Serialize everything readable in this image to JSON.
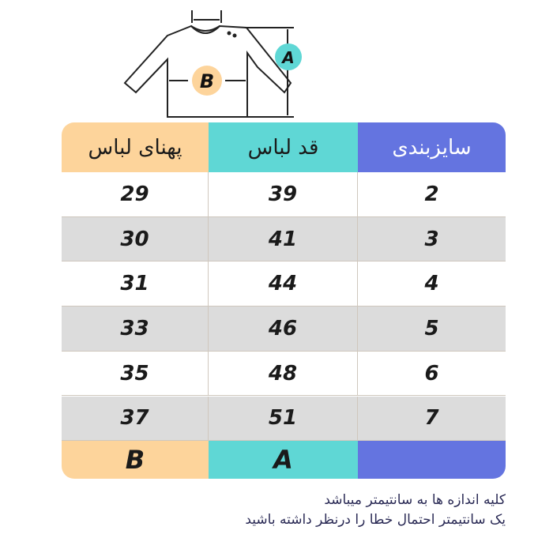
{
  "diagram": {
    "label_a": "A",
    "label_b": "B"
  },
  "colors": {
    "width_col": "#fdd49b",
    "length_col": "#5fd7d5",
    "size_col": "#6474e0",
    "row_alt": "#dcdcdc"
  },
  "table": {
    "headers": {
      "width": "پهنای لباس",
      "length": "قد لباس",
      "size": "سایزبندی"
    },
    "rows": [
      {
        "width": "29",
        "length": "39",
        "size": "2"
      },
      {
        "width": "30",
        "length": "41",
        "size": "3"
      },
      {
        "width": "31",
        "length": "44",
        "size": "4"
      },
      {
        "width": "33",
        "length": "46",
        "size": "5"
      },
      {
        "width": "35",
        "length": "48",
        "size": "6"
      },
      {
        "width": "37",
        "length": "51",
        "size": "7"
      }
    ],
    "footer": {
      "width": "B",
      "length": "A",
      "size": ""
    }
  },
  "notes": [
    "کلیه اندازه ها به سانتیمتر میباشد",
    "یک سانتیمتر احتمال خطا را درنظر داشته باشید"
  ]
}
